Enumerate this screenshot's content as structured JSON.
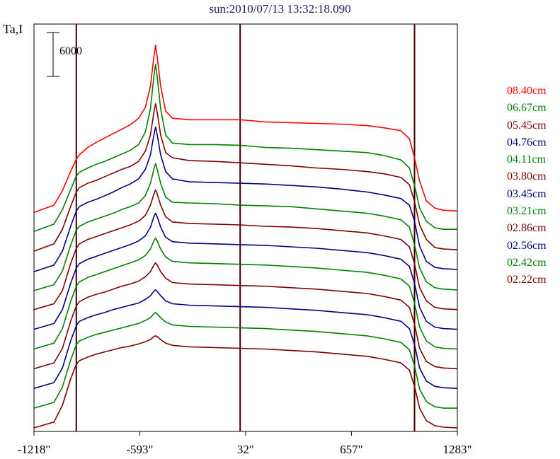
{
  "title": "sun:2010/07/13 13:32:18.090",
  "ylabel": "Ta,I",
  "chart_data": {
    "type": "line",
    "x_ticks": [
      "-1218\"",
      "-593\"",
      "32\"",
      "657\"",
      "1283\""
    ],
    "x_tick_values": [
      -1218,
      -593,
      32,
      657,
      1283
    ],
    "xlim": [
      -1218,
      1283
    ],
    "vertical_lines_x": [
      -968,
      0,
      1030
    ],
    "scale_bar": {
      "label": "6000",
      "value": 6000
    },
    "grid": false,
    "legend_position": "right",
    "x": [
      -1218,
      -1100,
      -1050,
      -1000,
      -968,
      -950,
      -900,
      -850,
      -800,
      -750,
      -700,
      -650,
      -600,
      -560,
      -530,
      -510,
      -500,
      -490,
      -470,
      -440,
      -400,
      -300,
      -150,
      0,
      150,
      300,
      450,
      600,
      750,
      850,
      950,
      1000,
      1030,
      1060,
      1100,
      1150,
      1200,
      1283
    ],
    "series": [
      {
        "name": "08.40cm",
        "color": "#ff0000",
        "values": [
          45700,
          46700,
          48700,
          51400,
          53000,
          53600,
          54600,
          55300,
          55900,
          56500,
          57100,
          57700,
          58600,
          60100,
          63000,
          67000,
          68600,
          67000,
          63000,
          59600,
          58600,
          58400,
          58400,
          58400,
          58100,
          58000,
          57900,
          57800,
          57600,
          57300,
          56900,
          55800,
          53200,
          50000,
          47300,
          46300,
          46000,
          45900
        ]
      },
      {
        "name": "06.67cm",
        "color": "#008000",
        "values": [
          43100,
          44100,
          46100,
          48900,
          50700,
          51200,
          51800,
          52300,
          52700,
          53200,
          53700,
          54200,
          55000,
          56700,
          59900,
          64300,
          66000,
          64300,
          59900,
          56300,
          55200,
          55000,
          55000,
          54900,
          54600,
          54500,
          54300,
          54100,
          53900,
          53500,
          52900,
          51800,
          49400,
          46300,
          44500,
          43600,
          43400,
          43400
        ]
      },
      {
        "name": "05.45cm",
        "color": "#800000",
        "values": [
          40400,
          41400,
          43400,
          46600,
          48500,
          49100,
          49700,
          50100,
          50600,
          51100,
          51600,
          52000,
          52700,
          54100,
          56300,
          59400,
          60600,
          59400,
          56300,
          53900,
          53200,
          52800,
          52700,
          52500,
          52300,
          52100,
          51800,
          51600,
          51300,
          51000,
          50500,
          49500,
          47200,
          44000,
          42000,
          40900,
          40700,
          40600
        ]
      },
      {
        "name": "04.76cm",
        "color": "#000080",
        "values": [
          37600,
          38500,
          40400,
          43900,
          45900,
          46500,
          47100,
          47500,
          48000,
          48500,
          49100,
          49600,
          50300,
          51600,
          53600,
          56300,
          57400,
          56300,
          53600,
          51300,
          50300,
          49900,
          49800,
          49700,
          49600,
          49400,
          49200,
          48900,
          48500,
          48100,
          47600,
          46700,
          44500,
          41100,
          39000,
          38200,
          38000,
          37900
        ]
      },
      {
        "name": "04.11cm",
        "color": "#008000",
        "values": [
          35000,
          35800,
          37700,
          41300,
          43300,
          43800,
          44400,
          44800,
          45200,
          45600,
          46100,
          46500,
          47000,
          48000,
          49700,
          51600,
          52400,
          51600,
          49700,
          47800,
          47100,
          47000,
          46900,
          46700,
          46600,
          46500,
          46200,
          45900,
          45600,
          45200,
          44700,
          43700,
          41300,
          38100,
          36200,
          35400,
          35200,
          35100
        ]
      },
      {
        "name": "03.80cm",
        "color": "#800000",
        "values": [
          32400,
          33200,
          35000,
          38800,
          40800,
          41400,
          42000,
          42400,
          42800,
          43200,
          43600,
          44000,
          44500,
          45300,
          46700,
          48200,
          48800,
          48200,
          46700,
          45100,
          44400,
          44200,
          44100,
          44000,
          43800,
          43700,
          43500,
          43200,
          42900,
          42500,
          42000,
          41000,
          38700,
          35400,
          33600,
          32700,
          32500,
          32400
        ]
      },
      {
        "name": "03.45cm",
        "color": "#000080",
        "values": [
          29700,
          30500,
          32400,
          36100,
          38100,
          38700,
          39300,
          39700,
          40100,
          40500,
          40900,
          41300,
          41800,
          42500,
          43700,
          45100,
          45600,
          45100,
          43700,
          42300,
          41700,
          41500,
          41400,
          41300,
          41200,
          41000,
          40800,
          40500,
          40200,
          39800,
          39300,
          38300,
          36000,
          32700,
          30800,
          30000,
          29800,
          29700
        ]
      },
      {
        "name": "03.21cm",
        "color": "#008000",
        "values": [
          27000,
          27800,
          29800,
          33600,
          35600,
          36200,
          36800,
          37200,
          37600,
          38000,
          38400,
          38800,
          39200,
          39800,
          40700,
          41800,
          42200,
          41800,
          40700,
          39600,
          39000,
          38800,
          38700,
          38600,
          38500,
          38300,
          38100,
          37800,
          37500,
          37100,
          36600,
          35600,
          33300,
          30000,
          28100,
          27300,
          27100,
          27000
        ]
      },
      {
        "name": "02.86cm",
        "color": "#800000",
        "values": [
          24300,
          25100,
          27100,
          30900,
          32900,
          33500,
          34100,
          34500,
          34800,
          35200,
          35600,
          35900,
          36300,
          36900,
          37600,
          38500,
          38800,
          38500,
          37600,
          36700,
          36100,
          35900,
          35800,
          35700,
          35600,
          35400,
          35200,
          34900,
          34600,
          34200,
          33700,
          32700,
          30400,
          27100,
          25300,
          24600,
          24400,
          24300
        ]
      },
      {
        "name": "02.56cm",
        "color": "#000080",
        "values": [
          21600,
          22400,
          24400,
          28200,
          30200,
          30800,
          31300,
          31700,
          32000,
          32400,
          32700,
          33000,
          33300,
          33800,
          34300,
          34900,
          35100,
          34900,
          34300,
          33600,
          33200,
          33000,
          32900,
          32800,
          32700,
          32500,
          32300,
          32000,
          31700,
          31300,
          30800,
          29800,
          27600,
          24400,
          22600,
          21900,
          21700,
          21600
        ]
      },
      {
        "name": "02.42cm",
        "color": "#008000",
        "values": [
          18900,
          19700,
          21800,
          25600,
          27600,
          28100,
          28600,
          29000,
          29300,
          29600,
          29900,
          30200,
          30500,
          30900,
          31300,
          31800,
          32000,
          31800,
          31300,
          30700,
          30300,
          30100,
          30000,
          29900,
          29800,
          29600,
          29400,
          29100,
          28800,
          28400,
          27900,
          26900,
          24700,
          21500,
          19800,
          19100,
          18900,
          18900
        ]
      },
      {
        "name": "02.22cm",
        "color": "#800000",
        "values": [
          16200,
          17000,
          19300,
          23000,
          24900,
          25400,
          25900,
          26300,
          26600,
          26900,
          27200,
          27400,
          27700,
          28000,
          28300,
          28700,
          28800,
          28700,
          28300,
          27800,
          27500,
          27300,
          27200,
          27100,
          27000,
          26800,
          26600,
          26300,
          26000,
          25600,
          25100,
          24100,
          21900,
          18900,
          17200,
          16500,
          16300,
          16200
        ]
      }
    ]
  }
}
